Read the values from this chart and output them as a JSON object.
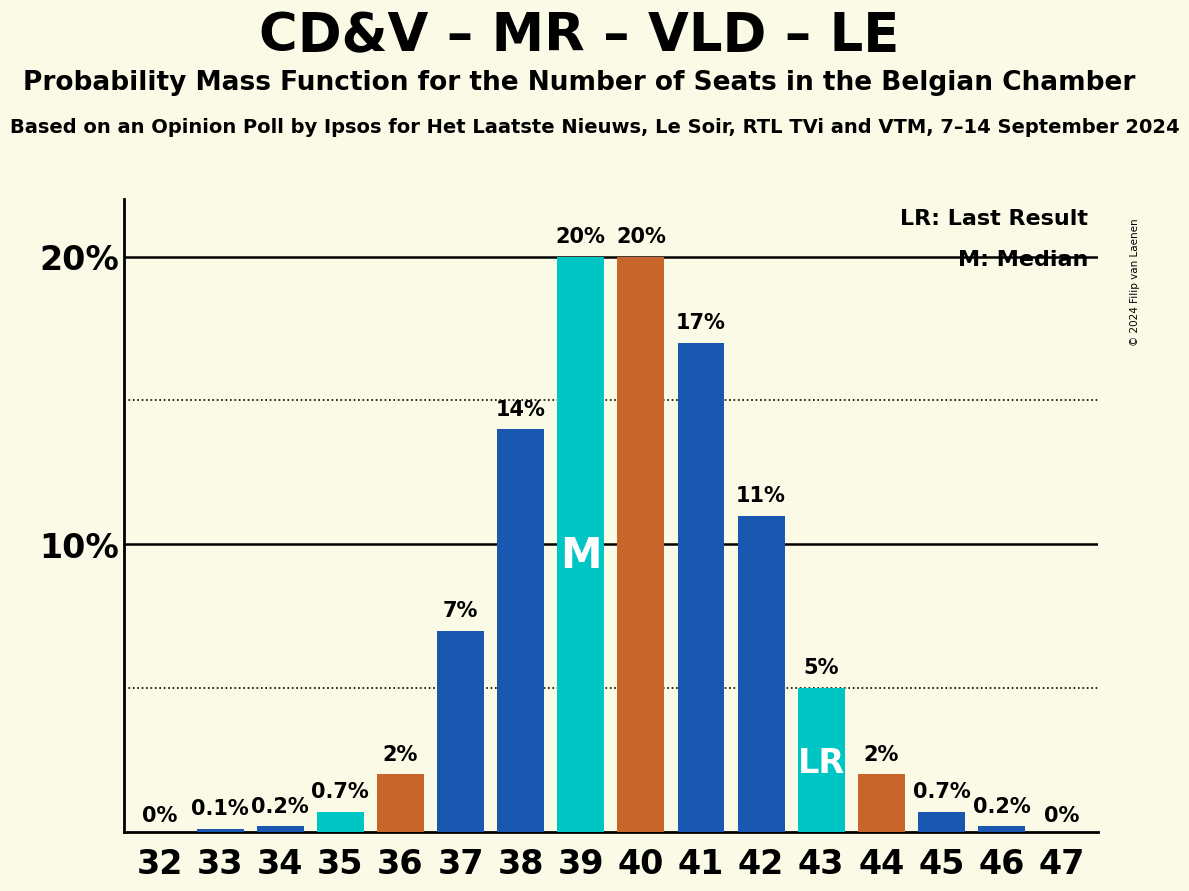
{
  "title": "CD&V – MR – VLD – LE",
  "subtitle": "Probability Mass Function for the Number of Seats in the Belgian Chamber",
  "source_line": "Based on an Opinion Poll by Ipsos for Het Laatste Nieuws, Le Soir, RTL TVi and VTM, 7–14 September 2024",
  "copyright": "© 2024 Filip van Laenen",
  "categories": [
    32,
    33,
    34,
    35,
    36,
    37,
    38,
    39,
    40,
    41,
    42,
    43,
    44,
    45,
    46,
    47
  ],
  "values": [
    0.001,
    0.1,
    0.2,
    0.7,
    2.0,
    7.0,
    14.0,
    20.0,
    20.0,
    17.0,
    11.0,
    5.0,
    2.0,
    0.7,
    0.2,
    0.001
  ],
  "labels": [
    "0%",
    "0.1%",
    "0.2%",
    "0.7%",
    "2%",
    "7%",
    "14%",
    "20%",
    "20%",
    "17%",
    "11%",
    "5%",
    "2%",
    "0.7%",
    "0.2%",
    "0%"
  ],
  "bar_colors": [
    "#1a57b0",
    "#1a57b0",
    "#1a57b0",
    "#00c5c5",
    "#c8652a",
    "#1a57b0",
    "#1a57b0",
    "#00c5c5",
    "#c8652a",
    "#1a57b0",
    "#1a57b0",
    "#00c5c5",
    "#c8652a",
    "#1a57b0",
    "#1a57b0",
    "#1a57b0"
  ],
  "median_seat": 39,
  "lr_mark_seat": 43,
  "median_label": "M",
  "lr_label": "LR",
  "legend_lr": "LR: Last Result",
  "legend_m": "M: Median",
  "bg_color": "#fafae6",
  "ylim_max": 22,
  "solid_lines": [
    10,
    20
  ],
  "dotted_lines": [
    5,
    15
  ],
  "title_fontsize": 38,
  "subtitle_fontsize": 19,
  "source_fontsize": 14,
  "label_fontsize": 15,
  "tick_fontsize": 24,
  "legend_fontsize": 16,
  "bar_width": 0.78
}
